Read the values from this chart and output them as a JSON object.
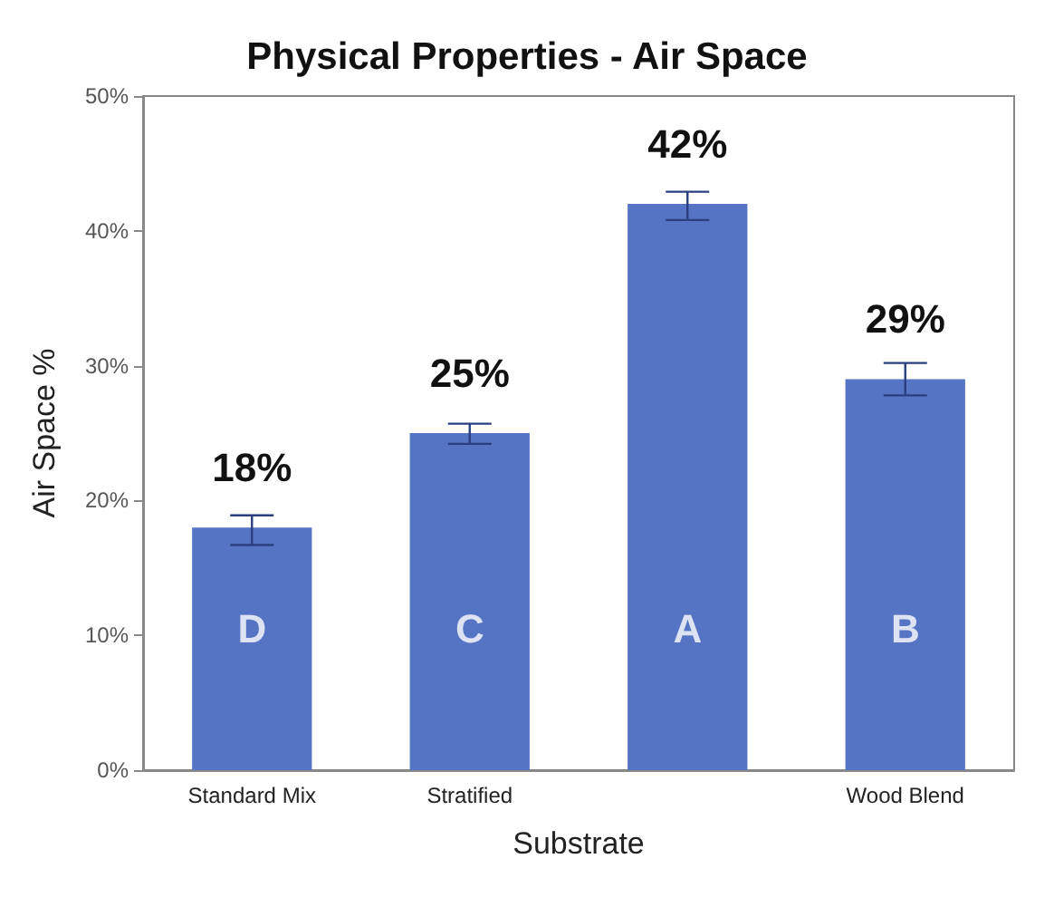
{
  "chart_data": {
    "type": "bar",
    "title": "Physical Properties - Air Space",
    "xlabel": "Substrate",
    "ylabel": "Air Space %",
    "categories": [
      "Standard Mix",
      "Stratified",
      null,
      "Wood Blend"
    ],
    "values": [
      18,
      25,
      42,
      29
    ],
    "color": "#5674c4",
    "errors": [
      [
        16.7,
        18.9
      ],
      [
        24.2,
        25.7
      ],
      [
        40.8,
        42.9
      ],
      [
        27.8,
        30.2
      ]
    ],
    "value_labels": [
      "18%",
      "25%",
      "42%",
      "29%"
    ],
    "annotations": [
      "D",
      "C",
      "A",
      "B"
    ],
    "ylim": [
      0,
      50
    ],
    "yticks": [
      {
        "value": 0,
        "label": "0%"
      },
      {
        "value": 10,
        "label": "10%"
      },
      {
        "value": 20,
        "label": "20%"
      },
      {
        "value": 30,
        "label": "30%"
      },
      {
        "value": 40,
        "label": "40%"
      },
      {
        "value": 50,
        "label": "50%"
      }
    ],
    "grid": false
  }
}
